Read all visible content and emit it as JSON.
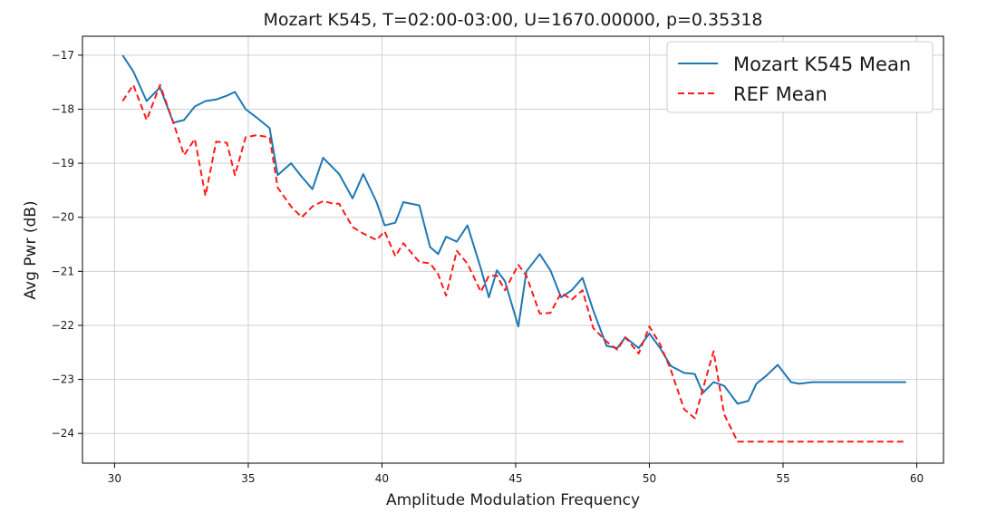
{
  "chart_data": {
    "type": "line",
    "title": "Mozart K545, T=02:00-03:00, U=1670.00000, p=0.35318",
    "xlabel": "Amplitude Modulation Frequency",
    "ylabel": "Avg Pwr (dB)",
    "xlim": [
      28.8,
      61.0
    ],
    "ylim": [
      -24.55,
      -16.65
    ],
    "xticks": [
      30,
      35,
      40,
      45,
      50,
      55,
      60
    ],
    "yticks": [
      -17,
      -18,
      -19,
      -20,
      -21,
      -22,
      -23,
      -24
    ],
    "grid": true,
    "legend": {
      "placement": "top-right",
      "entries": [
        "Mozart K545 Mean",
        "REF Mean"
      ]
    },
    "x": [
      30.3,
      30.7,
      31.2,
      31.7,
      32.2,
      32.6,
      33.0,
      33.4,
      33.8,
      34.2,
      34.5,
      34.9,
      35.3,
      35.8,
      36.1,
      36.6,
      37.0,
      37.4,
      37.8,
      38.2,
      38.4,
      38.9,
      39.3,
      39.8,
      40.1,
      40.5,
      40.8,
      41.4,
      41.8,
      42.1,
      42.4,
      42.8,
      43.2,
      43.7,
      44.0,
      44.3,
      44.6,
      45.1,
      45.4,
      45.9,
      46.3,
      46.7,
      47.1,
      47.5,
      47.9,
      48.4,
      48.8,
      49.1,
      49.6,
      50.0,
      50.4,
      50.8,
      51.3,
      51.7,
      52.0,
      52.4,
      52.8,
      53.3,
      53.7,
      54.0,
      54.4,
      54.8,
      55.3,
      55.6,
      56.1,
      56.5,
      56.9,
      57.4,
      57.8,
      58.1,
      58.5,
      58.9,
      59.3,
      59.6
    ],
    "series": [
      {
        "name": "Mozart K545 Mean",
        "color": "#1f77b4",
        "style": "solid",
        "values": [
          -17.0,
          -17.3,
          -17.85,
          -17.6,
          -18.25,
          -18.2,
          -17.95,
          -17.85,
          -17.82,
          -17.75,
          -17.68,
          -18.0,
          -18.15,
          -18.35,
          -19.22,
          -19.0,
          -19.25,
          -19.48,
          -18.9,
          -19.1,
          -19.2,
          -19.65,
          -19.2,
          -19.72,
          -20.15,
          -20.1,
          -19.72,
          -19.78,
          -20.55,
          -20.68,
          -20.36,
          -20.45,
          -20.15,
          -20.95,
          -21.48,
          -20.98,
          -21.18,
          -22.02,
          -21.0,
          -20.68,
          -20.98,
          -21.48,
          -21.35,
          -21.12,
          -21.72,
          -22.38,
          -22.42,
          -22.22,
          -22.42,
          -22.15,
          -22.42,
          -22.75,
          -22.88,
          -22.9,
          -23.25,
          -23.05,
          -23.12,
          -23.45,
          -23.4,
          -23.08,
          -22.92,
          -22.73,
          -23.05,
          -23.08,
          -23.05,
          -23.05,
          -23.05,
          -23.05,
          -23.05,
          -23.05,
          -23.05,
          -23.05,
          -23.05,
          -23.05
        ]
      },
      {
        "name": "REF Mean",
        "color": "#ff1a1a",
        "style": "dashed",
        "values": [
          -17.85,
          -17.55,
          -18.2,
          -17.55,
          -18.25,
          -18.85,
          -18.55,
          -19.6,
          -18.6,
          -18.62,
          -19.22,
          -18.52,
          -18.48,
          -18.52,
          -19.45,
          -19.8,
          -20.0,
          -19.8,
          -19.7,
          -19.75,
          -19.75,
          -20.18,
          -20.3,
          -20.42,
          -20.26,
          -20.72,
          -20.48,
          -20.83,
          -20.85,
          -21.05,
          -21.45,
          -20.62,
          -20.86,
          -21.38,
          -21.08,
          -21.08,
          -21.35,
          -20.88,
          -21.08,
          -21.78,
          -21.77,
          -21.4,
          -21.52,
          -21.35,
          -22.05,
          -22.3,
          -22.45,
          -22.22,
          -22.52,
          -22.02,
          -22.35,
          -22.82,
          -23.55,
          -23.72,
          -23.18,
          -22.48,
          -23.65,
          -24.15,
          -24.15,
          -24.15,
          -24.15,
          -24.15,
          -24.15,
          -24.15,
          -24.15,
          -24.15,
          -24.15,
          -24.15,
          -24.15,
          -24.15,
          -24.15,
          -24.15,
          -24.15,
          -24.15
        ]
      }
    ]
  }
}
